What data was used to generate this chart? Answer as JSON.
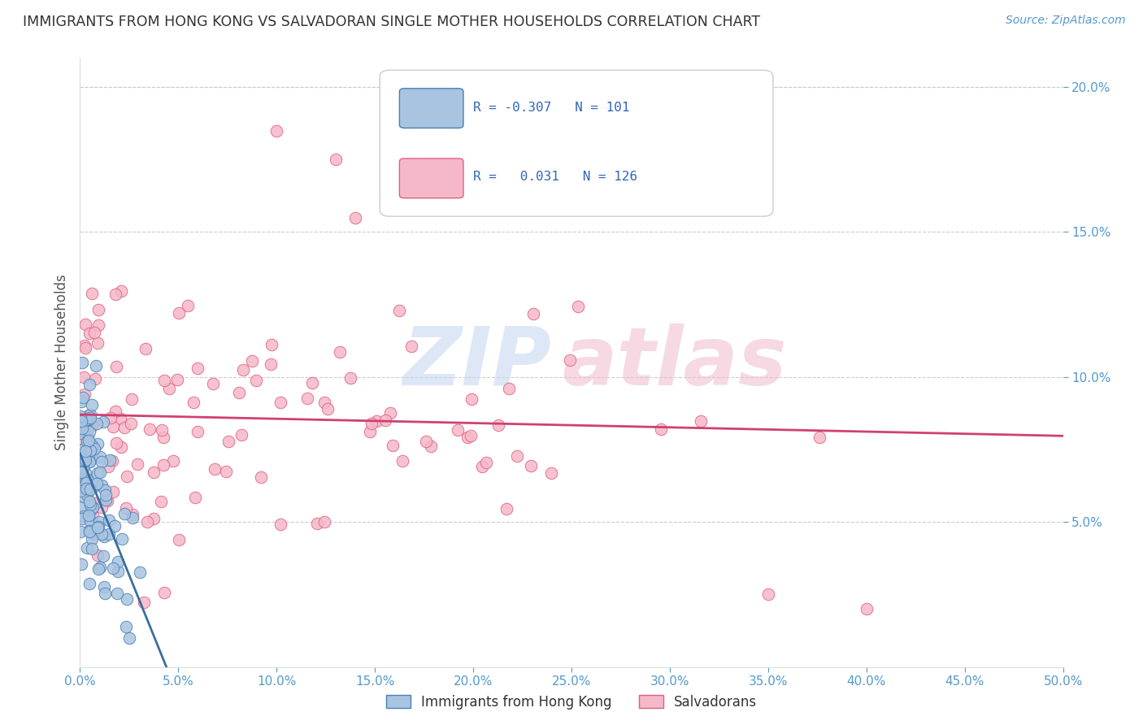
{
  "title": "IMMIGRANTS FROM HONG KONG VS SALVADORAN SINGLE MOTHER HOUSEHOLDS CORRELATION CHART",
  "source": "Source: ZipAtlas.com",
  "ylabel": "Single Mother Households",
  "legend_labels": [
    "Immigrants from Hong Kong",
    "Salvadorans"
  ],
  "xlim": [
    0.0,
    0.5
  ],
  "ylim": [
    0.0,
    0.21
  ],
  "xticks": [
    0.0,
    0.05,
    0.1,
    0.15,
    0.2,
    0.25,
    0.3,
    0.35,
    0.4,
    0.45,
    0.5
  ],
  "yticks": [
    0.05,
    0.1,
    0.15,
    0.2
  ],
  "color_blue_fill": "#a8c4e0",
  "color_blue_edge": "#4a7fb5",
  "color_pink_fill": "#f5b8c8",
  "color_pink_edge": "#e06080",
  "color_blue_line": "#3a6fa0",
  "color_pink_line": "#d04070",
  "color_dashed": "#9bbcd8",
  "tick_color": "#5599cc",
  "grid_color": "#cccccc",
  "watermark_zip_color": "#c8d8f0",
  "watermark_atlas_color": "#f0c0d0"
}
